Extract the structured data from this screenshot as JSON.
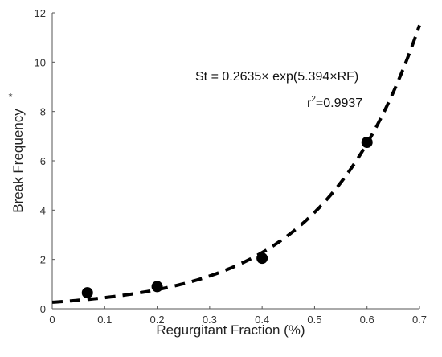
{
  "chart_data": {
    "type": "scatter",
    "xlabel": "Regurgitant Fraction (%)",
    "ylabel": "Break Frequency",
    "ylabel_marker": "*",
    "xlim": [
      0,
      0.7
    ],
    "ylim": [
      0,
      12
    ],
    "x_ticks": [
      "0",
      "0.1",
      "0.2",
      "0.3",
      "0.4",
      "0.5",
      "0.6",
      "0.7"
    ],
    "y_ticks": [
      "0",
      "2",
      "4",
      "6",
      "8",
      "10",
      "12"
    ],
    "grid": false,
    "series": [
      {
        "points": [
          {
            "x": 0.067,
            "y": 0.65
          },
          {
            "x": 0.2,
            "y": 0.9
          },
          {
            "x": 0.4,
            "y": 2.05
          },
          {
            "x": 0.6,
            "y": 6.75
          }
        ]
      }
    ],
    "fit": {
      "type": "exponential",
      "a": 0.2635,
      "b": 5.394,
      "x_range": [
        0,
        0.7
      ],
      "style": "dashed"
    },
    "annotations": {
      "equation": "St = 0.2635× exp(5.394×RF)",
      "r2_base": "r",
      "r2_exp": "2",
      "r2_value": "=0.9937"
    }
  }
}
